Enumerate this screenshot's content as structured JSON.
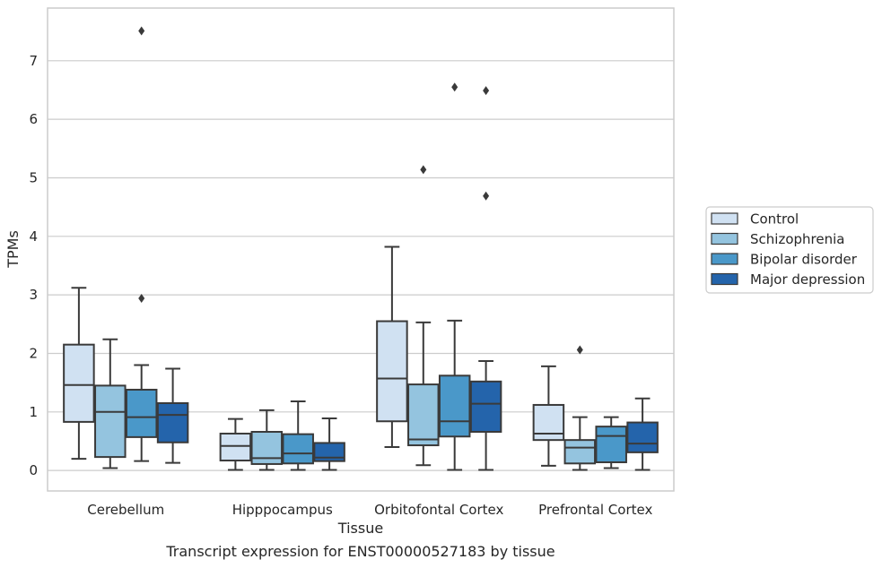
{
  "chart_data": {
    "type": "box",
    "title": "",
    "caption": "Transcript expression for ENST00000527183 by tissue",
    "xlabel": "Tissue",
    "ylabel": "TPMs",
    "ylim": [
      -0.35,
      7.9
    ],
    "yticks": [
      0,
      1,
      2,
      3,
      4,
      5,
      6,
      7
    ],
    "grid": "horizontal",
    "legend_position": "right",
    "categories": [
      "Cerebellum",
      "Hipppocampus",
      "Orbitofontal Cortex",
      "Prefrontal Cortex"
    ],
    "series": [
      {
        "name": "Control",
        "color": "#d0e1f2",
        "boxes": [
          {
            "whisker_low": 0.2,
            "q1": 0.83,
            "median": 1.46,
            "q3": 2.15,
            "whisker_high": 3.12,
            "outliers": []
          },
          {
            "whisker_low": 0.01,
            "q1": 0.17,
            "median": 0.42,
            "q3": 0.63,
            "whisker_high": 0.88,
            "outliers": []
          },
          {
            "whisker_low": 0.4,
            "q1": 0.84,
            "median": 1.57,
            "q3": 2.55,
            "whisker_high": 3.82,
            "outliers": []
          },
          {
            "whisker_low": 0.08,
            "q1": 0.52,
            "median": 0.63,
            "q3": 1.12,
            "whisker_high": 1.78,
            "outliers": []
          }
        ]
      },
      {
        "name": "Schizophrenia",
        "color": "#94c4df",
        "boxes": [
          {
            "whisker_low": 0.04,
            "q1": 0.23,
            "median": 1.0,
            "q3": 1.45,
            "whisker_high": 2.24,
            "outliers": []
          },
          {
            "whisker_low": 0.01,
            "q1": 0.11,
            "median": 0.21,
            "q3": 0.66,
            "whisker_high": 1.03,
            "outliers": []
          },
          {
            "whisker_low": 0.09,
            "q1": 0.43,
            "median": 0.53,
            "q3": 1.47,
            "whisker_high": 2.53,
            "outliers": [
              5.14
            ]
          },
          {
            "whisker_low": 0.01,
            "q1": 0.12,
            "median": 0.39,
            "q3": 0.52,
            "whisker_high": 0.91,
            "outliers": [
              2.06
            ]
          }
        ]
      },
      {
        "name": "Bipolar disorder",
        "color": "#4a98c9",
        "boxes": [
          {
            "whisker_low": 0.16,
            "q1": 0.57,
            "median": 0.91,
            "q3": 1.38,
            "whisker_high": 1.8,
            "outliers": [
              2.94,
              7.51
            ]
          },
          {
            "whisker_low": 0.01,
            "q1": 0.12,
            "median": 0.29,
            "q3": 0.62,
            "whisker_high": 1.18,
            "outliers": []
          },
          {
            "whisker_low": 0.01,
            "q1": 0.58,
            "median": 0.84,
            "q3": 1.62,
            "whisker_high": 2.56,
            "outliers": [
              6.55
            ]
          },
          {
            "whisker_low": 0.04,
            "q1": 0.14,
            "median": 0.59,
            "q3": 0.75,
            "whisker_high": 0.91,
            "outliers": []
          }
        ]
      },
      {
        "name": "Major depression",
        "color": "#2464ab",
        "boxes": [
          {
            "whisker_low": 0.13,
            "q1": 0.48,
            "median": 0.95,
            "q3": 1.15,
            "whisker_high": 1.74,
            "outliers": []
          },
          {
            "whisker_low": 0.01,
            "q1": 0.16,
            "median": 0.22,
            "q3": 0.47,
            "whisker_high": 0.89,
            "outliers": []
          },
          {
            "whisker_low": 0.01,
            "q1": 0.66,
            "median": 1.14,
            "q3": 1.52,
            "whisker_high": 1.87,
            "outliers": [
              4.69,
              6.49
            ]
          },
          {
            "whisker_low": 0.01,
            "q1": 0.31,
            "median": 0.46,
            "q3": 0.82,
            "whisker_high": 1.23,
            "outliers": []
          }
        ]
      }
    ]
  }
}
